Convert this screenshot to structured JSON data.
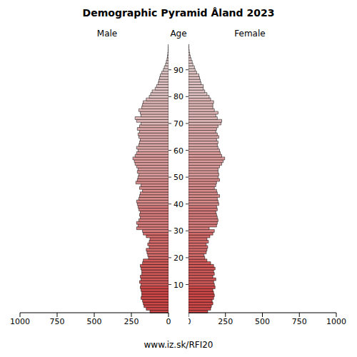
{
  "chart_data": {
    "type": "bar",
    "title": "Demographic Pyramid Åland 2023",
    "orientation": "horizontal",
    "y_label": "Age",
    "caption": "www.iz.sk/RFI20",
    "categories": [
      null,
      null,
      null,
      null,
      null,
      null,
      null,
      null,
      null,
      null,
      "10",
      null,
      null,
      null,
      null,
      null,
      null,
      null,
      null,
      null,
      "20",
      null,
      null,
      null,
      null,
      null,
      null,
      null,
      null,
      null,
      "30",
      null,
      null,
      null,
      null,
      null,
      null,
      null,
      null,
      null,
      "40",
      null,
      null,
      null,
      null,
      null,
      null,
      null,
      null,
      null,
      "50",
      null,
      null,
      null,
      null,
      null,
      null,
      null,
      null,
      null,
      "60",
      null,
      null,
      null,
      null,
      null,
      null,
      null,
      null,
      null,
      "70",
      null,
      null,
      null,
      null,
      null,
      null,
      null,
      null,
      null,
      "80",
      null,
      null,
      null,
      null,
      null,
      null,
      null,
      null,
      null,
      "90",
      null,
      null,
      null,
      null,
      null,
      null,
      null,
      null,
      null
    ],
    "series": [
      {
        "name": "Male",
        "values": [
          125,
          150,
          165,
          170,
          175,
          185,
          180,
          180,
          185,
          190,
          185,
          195,
          185,
          190,
          180,
          180,
          185,
          190,
          175,
          170,
          135,
          140,
          145,
          150,
          130,
          140,
          130,
          125,
          150,
          170,
          175,
          215,
          205,
          215,
          200,
          190,
          195,
          190,
          200,
          205,
          210,
          215,
          200,
          195,
          190,
          175,
          195,
          185,
          220,
          210,
          205,
          200,
          210,
          205,
          215,
          225,
          230,
          240,
          225,
          215,
          205,
          215,
          200,
          195,
          190,
          200,
          205,
          195,
          210,
          195,
          185,
          215,
          225,
          185,
          190,
          200,
          180,
          175,
          170,
          150,
          130,
          120,
          110,
          90,
          80,
          70,
          65,
          60,
          55,
          45,
          35,
          28,
          20,
          15,
          10,
          7,
          5,
          3,
          2,
          1
        ]
      },
      {
        "name": "Female",
        "values": [
          130,
          150,
          155,
          165,
          160,
          170,
          175,
          170,
          165,
          180,
          175,
          170,
          185,
          165,
          175,
          170,
          180,
          170,
          150,
          125,
          110,
          105,
          120,
          125,
          130,
          120,
          135,
          125,
          145,
          165,
          175,
          140,
          190,
          195,
          200,
          195,
          190,
          185,
          195,
          190,
          205,
          200,
          195,
          210,
          195,
          190,
          175,
          185,
          190,
          210,
          200,
          205,
          200,
          200,
          210,
          225,
          235,
          245,
          225,
          215,
          210,
          200,
          195,
          200,
          190,
          205,
          195,
          185,
          190,
          200,
          220,
          225,
          195,
          185,
          200,
          175,
          165,
          165,
          170,
          150,
          140,
          125,
          110,
          100,
          100,
          85,
          80,
          75,
          70,
          55,
          45,
          40,
          30,
          25,
          18,
          12,
          8,
          5,
          3,
          2
        ]
      }
    ],
    "colors": [
      "#cd4848",
      "#cd4848",
      "#cd4848",
      "#cd4848",
      "#cd4848",
      "#cd4848",
      "#cd4848",
      "#cd4848",
      "#cd4848",
      "#cd4848",
      "#d05a5a",
      "#d05a5a",
      "#d05a5a",
      "#d05a5a",
      "#d05a5a",
      "#d05a5a",
      "#d05a5a",
      "#d05a5a",
      "#d05a5a",
      "#d05a5a",
      "#d36b6b",
      "#d36b6b",
      "#d36b6b",
      "#d36b6b",
      "#d36b6b",
      "#d36b6b",
      "#d36b6b",
      "#d36b6b",
      "#d36b6b",
      "#d36b6b",
      "#d67c7c",
      "#d67c7c",
      "#d67c7c",
      "#d67c7c",
      "#d67c7c",
      "#d67c7c",
      "#d67c7c",
      "#d67c7c",
      "#d67c7c",
      "#d67c7c",
      "#d98c8c",
      "#d98c8c",
      "#d98c8c",
      "#d98c8c",
      "#d98c8c",
      "#d98c8c",
      "#d98c8c",
      "#d98c8c",
      "#d98c8c",
      "#d98c8c",
      "#db9b9b",
      "#db9b9b",
      "#db9b9b",
      "#db9b9b",
      "#db9b9b",
      "#db9b9b",
      "#db9b9b",
      "#db9b9b",
      "#db9b9b",
      "#db9b9b",
      "#dda9a9",
      "#dda9a9",
      "#dda9a9",
      "#dda9a9",
      "#dda9a9",
      "#dda9a9",
      "#dda9a9",
      "#dda9a9",
      "#dda9a9",
      "#dda9a9",
      "#dfb6b6",
      "#dfb6b6",
      "#dfb6b6",
      "#dfb6b6",
      "#dfb6b6",
      "#dfb6b6",
      "#dfb6b6",
      "#dfb6b6",
      "#dfb6b6",
      "#dfb6b6",
      "#e0c2c2",
      "#e0c2c2",
      "#e0c2c2",
      "#e0c2c2",
      "#e0c2c2",
      "#e0c2c2",
      "#e0c2c2",
      "#e0c2c2",
      "#e0c2c2",
      "#e0c2c2",
      "#e2cccc",
      "#e2cccc",
      "#e2cccc",
      "#e2cccc",
      "#e2cccc",
      "#e2cccc",
      "#e2cccc",
      "#e2cccc",
      "#e2cccc",
      "#e2cccc"
    ],
    "xlim": [
      0,
      1000
    ],
    "xticks": [
      0,
      250,
      500,
      750,
      1000
    ],
    "grid": false
  }
}
